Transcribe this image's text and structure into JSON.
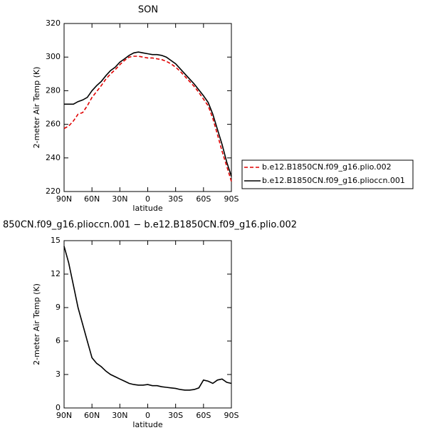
{
  "chart_data": [
    {
      "type": "line",
      "title": "SON",
      "xlabel": "latitude",
      "ylabel": "2-meter Air Temp (K)",
      "x": [
        90,
        85,
        80,
        75,
        70,
        65,
        60,
        55,
        50,
        45,
        40,
        35,
        30,
        25,
        20,
        15,
        10,
        5,
        0,
        -5,
        -10,
        -15,
        -20,
        -25,
        -30,
        -35,
        -40,
        -45,
        -50,
        -55,
        -60,
        -65,
        -70,
        -75,
        -80,
        -85,
        -90
      ],
      "xlim": [
        90,
        -90
      ],
      "xticks": [
        {
          "value": 90,
          "label": "90N"
        },
        {
          "value": 60,
          "label": "60N"
        },
        {
          "value": 30,
          "label": "30N"
        },
        0,
        {
          "value": -30,
          "label": "30S"
        },
        {
          "value": -60,
          "label": "60S"
        },
        {
          "value": -90,
          "label": "90S"
        }
      ],
      "ylim": [
        220,
        320
      ],
      "yticks": [
        220,
        240,
        260,
        280,
        300,
        320
      ],
      "legend": "right",
      "series": [
        {
          "name": "b.e12.B1850CN.f09_g16.plio.002",
          "color": "#e00000",
          "linestyle": "dashed",
          "values": [
            257.5,
            259,
            262,
            266,
            267,
            271,
            276,
            279.5,
            283,
            287,
            290,
            292.5,
            295.5,
            298,
            300,
            300.5,
            300.5,
            300,
            299.5,
            299.5,
            299,
            298.5,
            297.5,
            296,
            294,
            291.5,
            288.5,
            285.5,
            282.5,
            279,
            275,
            271,
            263.5,
            254,
            244,
            235,
            226
          ]
        },
        {
          "name": "b.e12.B1850CN.f09_g16.plioccn.001",
          "color": "#000000",
          "linestyle": "solid",
          "values": [
            272,
            272,
            272,
            273.5,
            274.5,
            276,
            280,
            283,
            285.5,
            289,
            292,
            294,
            297,
            299,
            301,
            302.5,
            303,
            302.5,
            302,
            301.5,
            301.5,
            301,
            300,
            298,
            296,
            293,
            290,
            287,
            284,
            280.5,
            277,
            273,
            266,
            257,
            248,
            237.5,
            229
          ]
        }
      ]
    },
    {
      "type": "line",
      "title": "850CN.f09_g16.plioccn.001 − b.e12.B1850CN.f09_g16.plio.002",
      "xlabel": "latitude",
      "ylabel": "2-meter Air Temp (K)",
      "x": [
        90,
        85,
        80,
        75,
        70,
        65,
        60,
        55,
        50,
        45,
        40,
        35,
        30,
        25,
        20,
        15,
        10,
        5,
        0,
        -5,
        -10,
        -15,
        -20,
        -25,
        -30,
        -35,
        -40,
        -45,
        -50,
        -55,
        -60,
        -65,
        -70,
        -75,
        -80,
        -85,
        -90
      ],
      "xlim": [
        90,
        -90
      ],
      "xticks": [
        {
          "value": 90,
          "label": "90N"
        },
        {
          "value": 60,
          "label": "60N"
        },
        {
          "value": 30,
          "label": "30N"
        },
        0,
        {
          "value": -30,
          "label": "30S"
        },
        {
          "value": -60,
          "label": "60S"
        },
        {
          "value": -90,
          "label": "90S"
        }
      ],
      "ylim": [
        0,
        15
      ],
      "yticks": [
        0,
        3,
        6,
        9,
        12,
        15
      ],
      "series": [
        {
          "color": "#000000",
          "linestyle": "solid",
          "values": [
            14.5,
            13,
            11,
            9,
            7.5,
            6,
            4.5,
            4,
            3.7,
            3.3,
            3,
            2.8,
            2.6,
            2.4,
            2.2,
            2.1,
            2.05,
            2.05,
            2.1,
            2.0,
            2.0,
            1.9,
            1.85,
            1.8,
            1.75,
            1.65,
            1.6,
            1.6,
            1.65,
            1.8,
            2.5,
            2.4,
            2.2,
            2.5,
            2.6,
            2.3,
            2.2
          ]
        }
      ]
    }
  ]
}
